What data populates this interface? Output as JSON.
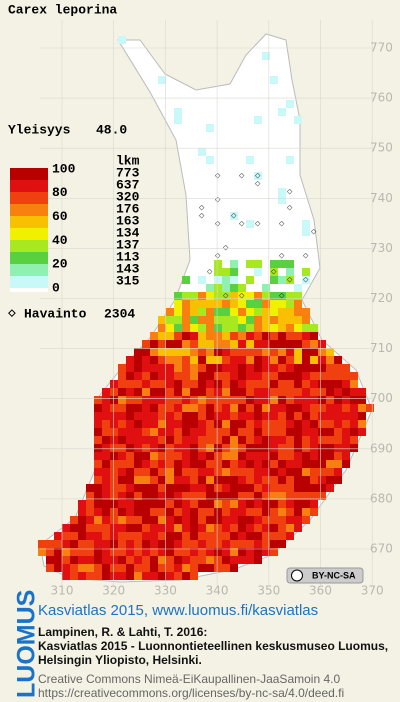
{
  "title": "Carex leporina",
  "frequency": {
    "label": "Yleisyys",
    "value": "48.0"
  },
  "legend": {
    "scale_labels": [
      "100",
      "80",
      "60",
      "40",
      "20",
      "0"
    ],
    "count_header": "lkm",
    "counts": [
      773,
      637,
      320,
      176,
      163,
      134,
      137,
      113,
      143,
      315
    ],
    "colors": [
      "#b80000",
      "#e01010",
      "#f04010",
      "#f88010",
      "#f8c000",
      "#f0f000",
      "#a8e820",
      "#58d040",
      "#90f0b0",
      "#c8f8f8"
    ]
  },
  "observations": {
    "label": "Havainto",
    "value": "2304"
  },
  "north_labels": [
    "770",
    "760",
    "750",
    "740",
    "730",
    "720",
    "710",
    "700",
    "690",
    "680",
    "670"
  ],
  "east_labels": [
    "310",
    "320",
    "330",
    "340",
    "350",
    "360",
    "370"
  ],
  "license_badge": "BY-NC-SA",
  "logo": "LUOMUS",
  "footer": {
    "heading": "Kasviatlas 2015, www.luomus.fi/kasviatlas",
    "citation": [
      "Lampinen, R. & Lahti, T. 2016:",
      "Kasviatlas 2015 - Luonnontieteellinen keskusmuseo Luomus,",
      "Helsingin Yliopisto, Helsinki."
    ],
    "license_lines": [
      "Creative Commons Nimeä-EiKaupallinen-JaaSamoin 4.0",
      "https://creativecommons.org/licenses/by-nc-sa/4.0/deed.fi"
    ]
  }
}
